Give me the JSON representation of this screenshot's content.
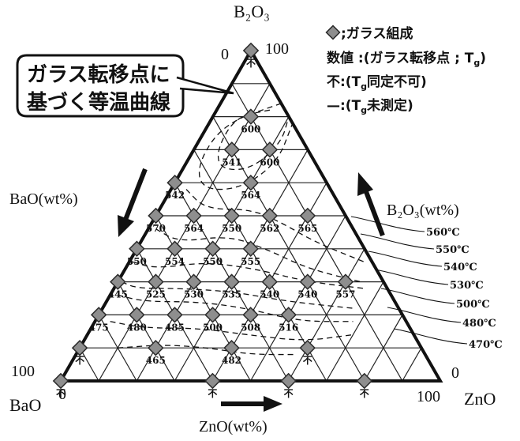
{
  "vertex_top": "B₂O₃",
  "vertex_left": "BaO",
  "vertex_right": "ZnO",
  "axis_left_label": "BaO(wt%)",
  "axis_right_label": "B₂O₃(wt%)",
  "axis_bottom_label": "ZnO(wt%)",
  "top_tick_0": "0",
  "top_tick_100": "100",
  "left_tick_100": "100",
  "left_tick_0": "0",
  "right_tick_0": "0",
  "right_tick_100": "100",
  "callout_line1": "ガラス転移点に",
  "callout_line2": "基づく等温曲線",
  "legend": {
    "glass_text": ";ガラス組成",
    "value_text": "数値 :(ガラス転移点 ; T",
    "value_sub": "g",
    "value_close": ")",
    "fu_text": "不:(T",
    "fu_sub": "g",
    "fu_close": "同定不可)",
    "dash_text": "—:(T",
    "dash_sub": "g",
    "dash_close": "未測定)"
  },
  "isotherm_labels": [
    "560℃",
    "550℃",
    "540℃",
    "530℃",
    "500℃",
    "480℃",
    "470℃"
  ],
  "colors": {
    "marker_fill": "#8e8e8e",
    "marker_stroke": "#2a2a2a",
    "arrow": "#1a1a1a"
  },
  "chart_data": {
    "type": "ternary",
    "components": [
      "B2O3",
      "BaO",
      "ZnO"
    ],
    "grid_step_wt_percent": 10,
    "isotherms_celsius": [
      560,
      550,
      540,
      530,
      500,
      480,
      470
    ],
    "points": [
      {
        "zno": 0,
        "b2o3": 100,
        "tg": "不"
      },
      {
        "zno": 10,
        "b2o3": 80,
        "tg": "600"
      },
      {
        "zno": 10,
        "b2o3": 70,
        "tg": "541"
      },
      {
        "zno": 20,
        "b2o3": 70,
        "tg": "600"
      },
      {
        "zno": 0,
        "b2o3": 60,
        "tg": "542"
      },
      {
        "zno": 20,
        "b2o3": 60,
        "tg": "564"
      },
      {
        "zno": 0,
        "b2o3": 50,
        "tg": "570"
      },
      {
        "zno": 10,
        "b2o3": 50,
        "tg": "564"
      },
      {
        "zno": 20,
        "b2o3": 50,
        "tg": "550"
      },
      {
        "zno": 30,
        "b2o3": 50,
        "tg": "562"
      },
      {
        "zno": 40,
        "b2o3": 50,
        "tg": "565"
      },
      {
        "zno": 0,
        "b2o3": 40,
        "tg": "550"
      },
      {
        "zno": 10,
        "b2o3": 40,
        "tg": "554"
      },
      {
        "zno": 20,
        "b2o3": 40,
        "tg": "550"
      },
      {
        "zno": 30,
        "b2o3": 40,
        "tg": "555"
      },
      {
        "zno": 0,
        "b2o3": 30,
        "tg": "445"
      },
      {
        "zno": 10,
        "b2o3": 30,
        "tg": "525"
      },
      {
        "zno": 20,
        "b2o3": 30,
        "tg": "530"
      },
      {
        "zno": 30,
        "b2o3": 30,
        "tg": "535"
      },
      {
        "zno": 40,
        "b2o3": 30,
        "tg": "540"
      },
      {
        "zno": 50,
        "b2o3": 30,
        "tg": "540"
      },
      {
        "zno": 60,
        "b2o3": 30,
        "tg": "557"
      },
      {
        "zno": 0,
        "b2o3": 20,
        "tg": "475"
      },
      {
        "zno": 10,
        "b2o3": 20,
        "tg": "480"
      },
      {
        "zno": 20,
        "b2o3": 20,
        "tg": "485"
      },
      {
        "zno": 30,
        "b2o3": 20,
        "tg": "500"
      },
      {
        "zno": 40,
        "b2o3": 20,
        "tg": "508"
      },
      {
        "zno": 50,
        "b2o3": 20,
        "tg": "516"
      },
      {
        "zno": 0,
        "b2o3": 10,
        "tg": "不"
      },
      {
        "zno": 20,
        "b2o3": 10,
        "tg": "465"
      },
      {
        "zno": 40,
        "b2o3": 10,
        "tg": "482"
      },
      {
        "zno": 60,
        "b2o3": 10,
        "tg": "不"
      },
      {
        "zno": 0,
        "b2o3": 0,
        "tg": "不"
      },
      {
        "zno": 40,
        "b2o3": 0,
        "tg": "不"
      },
      {
        "zno": 60,
        "b2o3": 0,
        "tg": "不"
      },
      {
        "zno": 80,
        "b2o3": 0,
        "tg": "不"
      }
    ]
  }
}
